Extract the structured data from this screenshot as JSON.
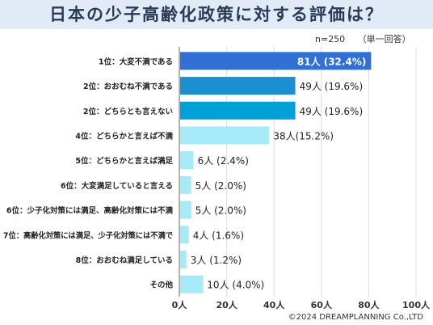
{
  "title": "日本の少子高齢化政策に対する評価は？",
  "note": {
    "n": "n=250",
    "answer_type": "（単一回答）"
  },
  "credit": "©2024 DREAMPLANNING Co.,LTD",
  "colors": {
    "top": "#2f6fd6",
    "second": "#1b8fd2",
    "third": "#00a0d8",
    "rest": "#a5eaf6"
  },
  "chart_data": {
    "type": "bar",
    "orientation": "horizontal",
    "categories": [
      "1位：大変不満である",
      "2位：おおむね不満である",
      "2位：どちらとも言えない",
      "4位：どちらかと言えば不満",
      "5位：どちらかと言えば満足",
      "6位：大変満足していると言える",
      "6位：少子化対策には満足、高齢化対策には不満",
      "7位：高齢化対策には満足、少子化対策には不満で",
      "8位：おおむね満足している",
      "その他"
    ],
    "values": [
      81,
      49,
      49,
      38,
      6,
      5,
      5,
      4,
      3,
      10
    ],
    "labels": [
      "81人 (32.4%)",
      "49人 (19.6%)",
      "49人 (19.6%)",
      "38人(15.2%)",
      "6人 (2.4%)",
      "5人 (2.0%)",
      "5人 (2.0%)",
      "4人 (1.6%)",
      "3人 (1.2%)",
      "10人 (4.0%)"
    ],
    "xlim": [
      0,
      100
    ],
    "ticks": [
      "0人",
      "20人",
      "40人",
      "60人",
      "80人",
      "100人"
    ],
    "grid": true
  }
}
